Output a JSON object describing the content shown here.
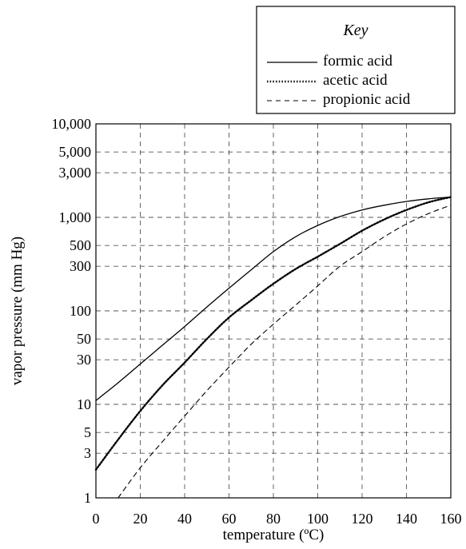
{
  "chart_data": {
    "type": "line",
    "y_scale": "log",
    "xlabel": "temperature (ºC)",
    "ylabel": "vapor pressure (mm Hg)",
    "xlim": [
      0,
      160
    ],
    "ylim": [
      1,
      10000
    ],
    "grid": true,
    "legend_title": "Key",
    "legend_position": "top-right",
    "x_ticks": [
      "0",
      "20",
      "40",
      "60",
      "80",
      "100",
      "120",
      "140",
      "160"
    ],
    "y_ticks": [
      {
        "value": 1,
        "label": "1"
      },
      {
        "value": 3,
        "label": "3"
      },
      {
        "value": 5,
        "label": "5"
      },
      {
        "value": 10,
        "label": "10"
      },
      {
        "value": 30,
        "label": "30"
      },
      {
        "value": 50,
        "label": "50"
      },
      {
        "value": 100,
        "label": "100"
      },
      {
        "value": 300,
        "label": "300"
      },
      {
        "value": 500,
        "label": "500"
      },
      {
        "value": 1000,
        "label": "1,000"
      },
      {
        "value": 3000,
        "label": "3,000"
      },
      {
        "value": 5000,
        "label": "5,000"
      },
      {
        "value": 10000,
        "label": "10,000"
      }
    ],
    "series": [
      {
        "name": "formic acid",
        "style": "solid",
        "x": [
          0,
          10,
          20,
          30,
          40,
          50,
          60,
          70,
          80,
          90,
          100,
          110,
          120,
          130,
          140,
          150,
          160
        ],
        "values": [
          11,
          17,
          27,
          43,
          68,
          110,
          175,
          275,
          430,
          620,
          820,
          1020,
          1200,
          1350,
          1480,
          1580,
          1650
        ]
      },
      {
        "name": "acetic acid",
        "style": "dotted",
        "x": [
          0,
          10,
          20,
          30,
          40,
          50,
          60,
          70,
          80,
          90,
          100,
          110,
          120,
          130,
          140,
          150,
          160
        ],
        "values": [
          2,
          4.2,
          8.5,
          16,
          28,
          50,
          85,
          130,
          195,
          280,
          380,
          520,
          720,
          950,
          1200,
          1450,
          1650
        ]
      },
      {
        "name": "propionic acid",
        "style": "dashed",
        "x": [
          10,
          20,
          30,
          40,
          50,
          60,
          70,
          80,
          90,
          100,
          110,
          120,
          130,
          140,
          150,
          160
        ],
        "values": [
          1,
          2.1,
          4,
          7.5,
          14,
          25,
          44,
          72,
          115,
          185,
          300,
          430,
          620,
          850,
          1100,
          1350
        ]
      }
    ]
  }
}
